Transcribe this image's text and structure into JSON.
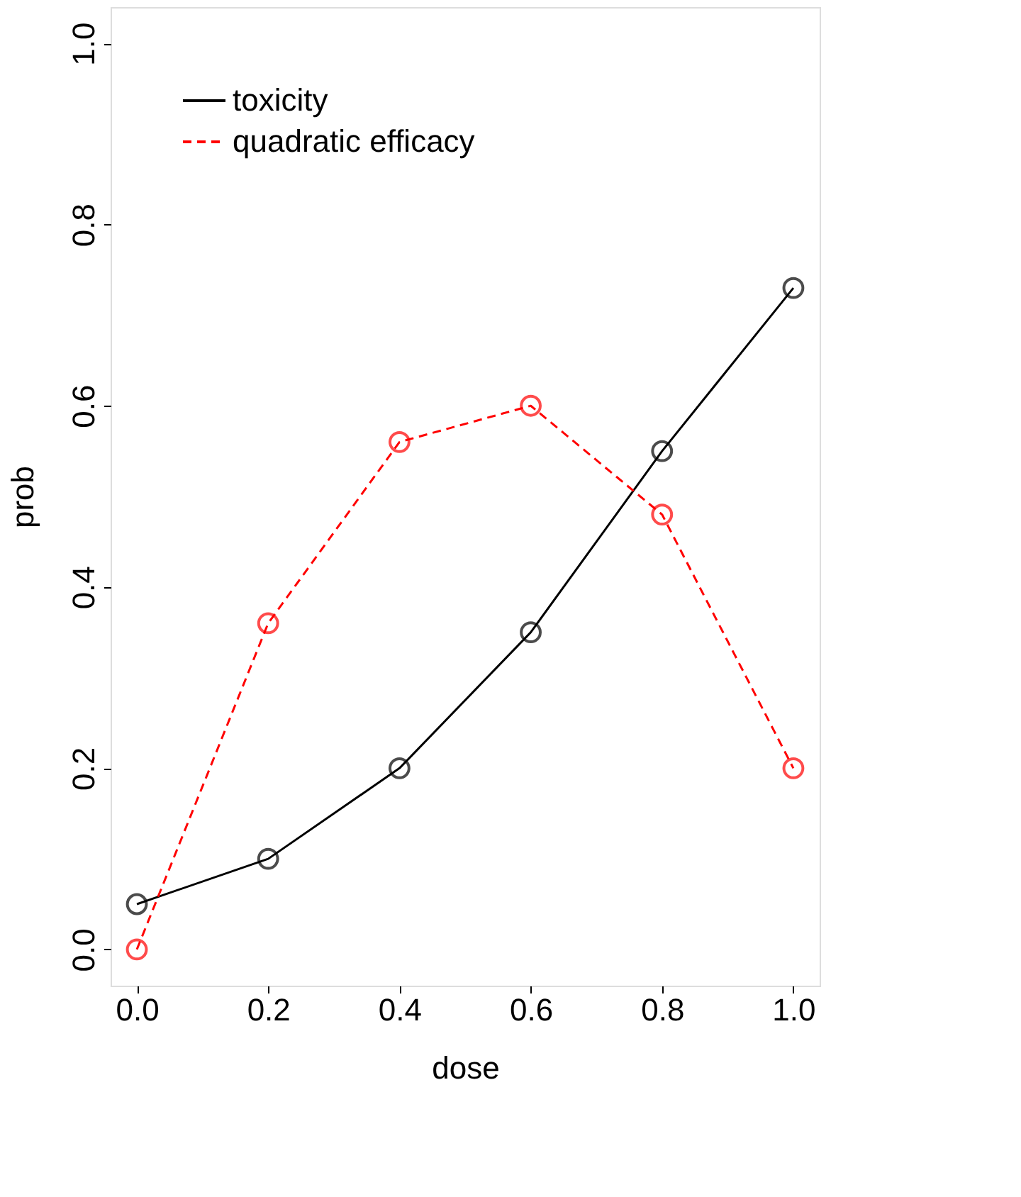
{
  "chart_data": {
    "type": "line",
    "xlabel": "dose",
    "ylabel": "prob",
    "x": [
      0.0,
      0.2,
      0.4,
      0.6,
      0.8,
      1.0
    ],
    "xlim": [
      -0.04,
      1.04
    ],
    "ylim": [
      -0.04,
      1.04
    ],
    "xticks": [
      {
        "value": 0,
        "label": "0.0"
      },
      {
        "value": 0.2,
        "label": "0.2"
      },
      {
        "value": 0.4,
        "label": "0.4"
      },
      {
        "value": 0.6,
        "label": "0.6"
      },
      {
        "value": 0.8,
        "label": "0.8"
      },
      {
        "value": 1,
        "label": "1.0"
      }
    ],
    "yticks": [
      {
        "value": 0,
        "label": "0.0"
      },
      {
        "value": 0.2,
        "label": "0.2"
      },
      {
        "value": 0.4,
        "label": "0.4"
      },
      {
        "value": 0.6,
        "label": "0.6"
      },
      {
        "value": 0.8,
        "label": "0.8"
      },
      {
        "value": 1,
        "label": "1.0"
      }
    ],
    "series": [
      {
        "name": "toxicity",
        "color": "#000000",
        "line_style": "solid",
        "values": [
          0.05,
          0.1,
          0.2,
          0.35,
          0.55,
          0.73
        ]
      },
      {
        "name": "quadratic efficacy",
        "color": "#ff0000",
        "line_style": "dashed",
        "values": [
          0.0,
          0.36,
          0.56,
          0.6,
          0.48,
          0.2
        ]
      }
    ],
    "marker": "circle",
    "grid": false,
    "legend": "top left"
  }
}
